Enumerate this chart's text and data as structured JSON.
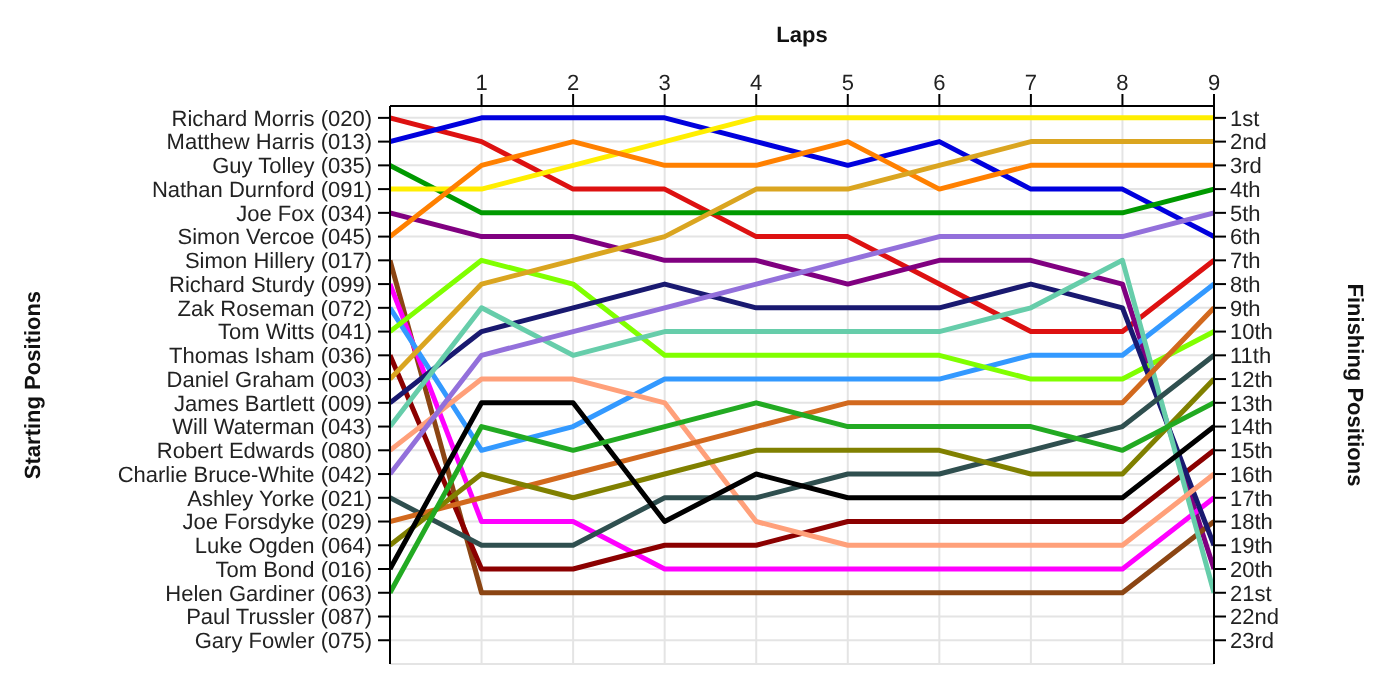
{
  "chart_data": {
    "type": "line",
    "xlabel": "Laps",
    "ylabel": "Finishing Positions",
    "x": [
      0,
      1,
      2,
      3,
      4,
      5,
      6,
      7,
      8,
      9
    ],
    "xlim": [
      0,
      9
    ],
    "xticks": [
      1,
      2,
      3,
      4,
      5,
      6,
      7,
      8,
      9
    ],
    "ylim": [
      24,
      0.5
    ],
    "yticks": [
      {
        "value": 1,
        "label": "1st"
      },
      {
        "value": 2,
        "label": "2nd"
      },
      {
        "value": 3,
        "label": "3rd"
      },
      {
        "value": 4,
        "label": "4th"
      },
      {
        "value": 5,
        "label": "5th"
      },
      {
        "value": 6,
        "label": "6th"
      },
      {
        "value": 7,
        "label": "7th"
      },
      {
        "value": 8,
        "label": "8th"
      },
      {
        "value": 9,
        "label": "9th"
      },
      {
        "value": 10,
        "label": "10th"
      },
      {
        "value": 11,
        "label": "11th"
      },
      {
        "value": 12,
        "label": "12th"
      },
      {
        "value": 13,
        "label": "13th"
      },
      {
        "value": 14,
        "label": "14th"
      },
      {
        "value": 15,
        "label": "15th"
      },
      {
        "value": 16,
        "label": "16th"
      },
      {
        "value": 17,
        "label": "17th"
      },
      {
        "value": 18,
        "label": "18th"
      },
      {
        "value": 19,
        "label": "19th"
      },
      {
        "value": 20,
        "label": "20th"
      },
      {
        "value": 21,
        "label": "21st"
      },
      {
        "value": 22,
        "label": "22nd"
      },
      {
        "value": 23,
        "label": "23rd"
      }
    ],
    "annotations": [
      "Starting Positions",
      "Richard Morris (020)",
      "Matthew Harris (013)",
      "Guy Tolley (035)",
      "Nathan Durnford (091)",
      "Joe Fox (034)",
      "Simon Vercoe (045)",
      "Simon Hillery (017)",
      "Richard Sturdy (099)",
      "Zak Roseman (072)",
      "Tom Witts (041)",
      "Thomas Isham (036)",
      "Daniel Graham (003)",
      "James Bartlett (009)",
      "Will Waterman (043)",
      "Robert Edwards (080)",
      "Charlie Bruce-White (042)",
      "Ashley Yorke (021)",
      "Joe Forsdyke (029)",
      "Luke Ogden (064)",
      "Tom Bond (016)",
      "Helen Gardiner (063)",
      "Paul Trussler (087)",
      "Gary Fowler (075)"
    ],
    "grid": true,
    "legend": false,
    "marker": "none",
    "line_style": "solid",
    "series": [
      {
        "color": "#dd1111",
        "values": [
          1,
          2,
          4,
          4,
          6,
          6,
          8,
          10,
          10,
          7
        ]
      },
      {
        "color": "#0000dd",
        "values": [
          2,
          1,
          1,
          1,
          2,
          3,
          2,
          4,
          4,
          6
        ]
      },
      {
        "color": "#009900",
        "values": [
          3,
          5,
          5,
          5,
          5,
          5,
          5,
          5,
          5,
          4
        ]
      },
      {
        "color": "#ffee00",
        "values": [
          4,
          4,
          3,
          2,
          1,
          1,
          1,
          1,
          1,
          1
        ]
      },
      {
        "color": "#800080",
        "values": [
          5,
          6,
          6,
          7,
          7,
          8,
          7,
          7,
          8,
          20
        ]
      },
      {
        "color": "#ff8000",
        "values": [
          6,
          3,
          2,
          3,
          3,
          2,
          4,
          3,
          3,
          3
        ]
      },
      {
        "color": "#8b4513",
        "values": [
          7,
          21,
          21,
          21,
          21,
          21,
          21,
          21,
          21,
          18
        ]
      },
      {
        "color": "#ff00ff",
        "values": [
          8,
          18,
          18,
          20,
          20,
          20,
          20,
          20,
          20,
          17
        ]
      },
      {
        "color": "#3399ff",
        "values": [
          9,
          15,
          14,
          12,
          12,
          12,
          12,
          11,
          11,
          8
        ]
      },
      {
        "color": "#80ff00",
        "values": [
          10,
          7,
          8,
          11,
          11,
          11,
          11,
          12,
          12,
          10
        ]
      },
      {
        "color": "#8b0000",
        "values": [
          11,
          20,
          20,
          19,
          19,
          18,
          18,
          18,
          18,
          15
        ]
      },
      {
        "color": "#daa520",
        "values": [
          12,
          8,
          7,
          6,
          4,
          4,
          3,
          2,
          2,
          2
        ]
      },
      {
        "color": "#191970",
        "values": [
          13,
          10,
          9,
          8,
          9,
          9,
          9,
          8,
          9,
          19
        ]
      },
      {
        "color": "#66cdaa",
        "values": [
          14,
          9,
          11,
          10,
          10,
          10,
          10,
          9,
          7,
          21
        ]
      },
      {
        "color": "#ffa07a",
        "values": [
          15,
          12,
          12,
          13,
          18,
          19,
          19,
          19,
          19,
          16
        ]
      },
      {
        "color": "#9370db",
        "values": [
          16,
          11,
          10,
          9,
          8,
          7,
          6,
          6,
          6,
          5
        ]
      },
      {
        "color": "#2f4f4f",
        "values": [
          17,
          19,
          19,
          17,
          17,
          16,
          16,
          15,
          14,
          11
        ]
      },
      {
        "color": "#d2691e",
        "values": [
          18,
          17,
          16,
          15,
          14,
          13,
          13,
          13,
          13,
          9
        ]
      },
      {
        "color": "#808000",
        "values": [
          19,
          16,
          17,
          16,
          15,
          15,
          15,
          16,
          16,
          12
        ]
      },
      {
        "color": "#000000",
        "values": [
          20,
          13,
          13,
          18,
          16,
          17,
          17,
          17,
          17,
          14
        ]
      },
      {
        "color": "#22aa22",
        "values": [
          21,
          14,
          15,
          14,
          13,
          14,
          14,
          14,
          15,
          13
        ]
      }
    ]
  }
}
